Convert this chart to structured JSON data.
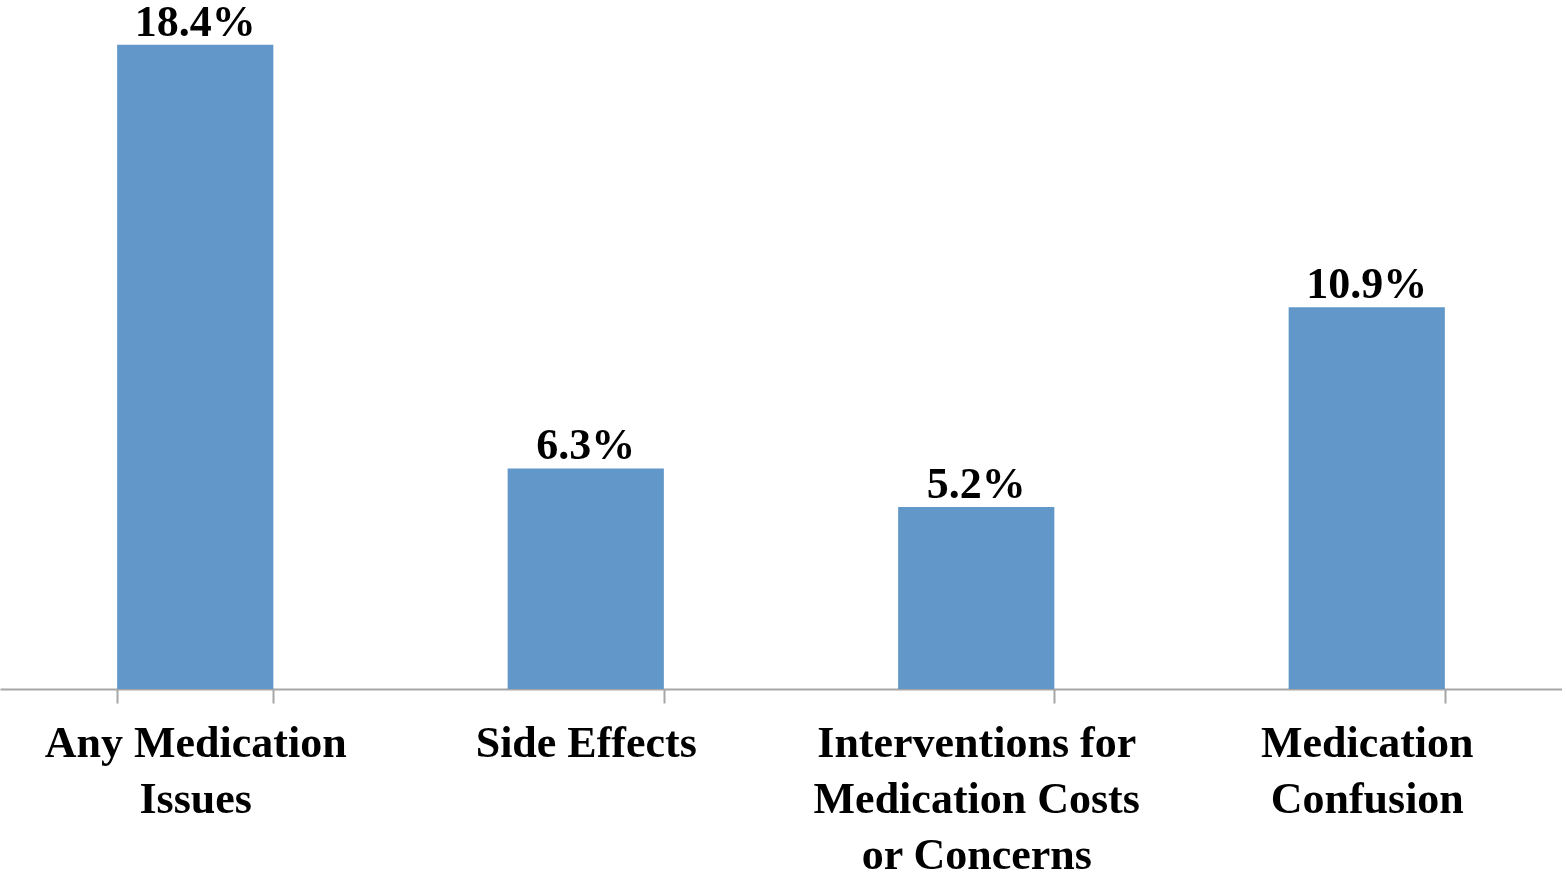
{
  "chart_data": {
    "type": "bar",
    "categories": [
      "Any Medication Issues",
      "Side Effects",
      "Interventions for Medication Costs or Concerns",
      "Medication Confusion"
    ],
    "values": [
      18.4,
      6.3,
      5.2,
      10.9
    ],
    "value_labels": [
      "18.4%",
      "6.3%",
      "5.2%",
      "10.9%"
    ],
    "color": "#6197c9"
  }
}
